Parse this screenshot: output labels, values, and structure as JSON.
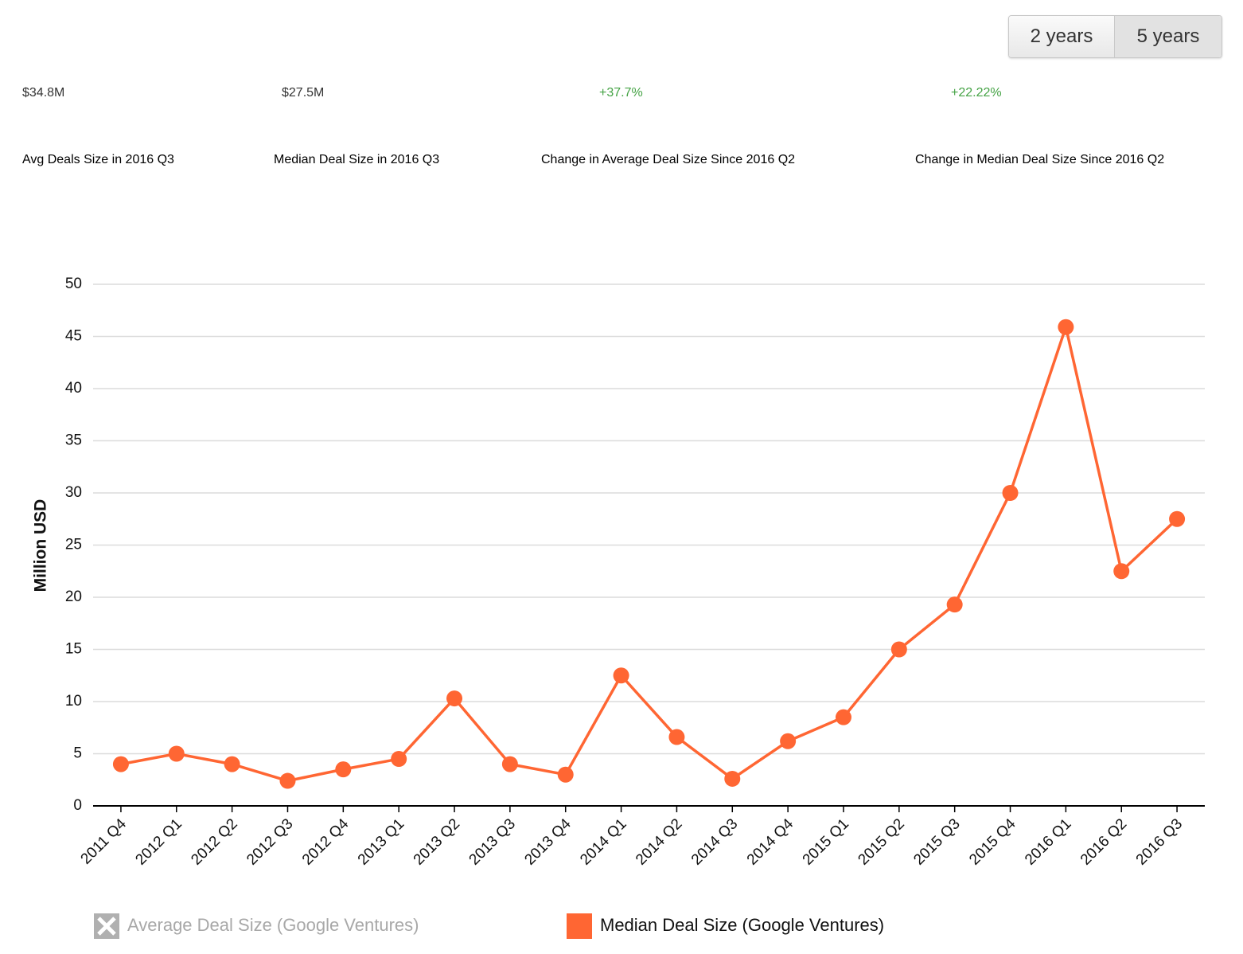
{
  "buttons": [
    "2 years",
    "5 years"
  ],
  "active_button": 1,
  "stats": [
    {
      "value": "$34.8M",
      "label": "Avg Deals Size in 2016 Q3",
      "color": "#333333"
    },
    {
      "value": "$27.5M",
      "label": "Median Deal Size in 2016 Q3",
      "color": "#333333"
    },
    {
      "value": "+37.7%",
      "label": "Change in Average Deal Size Since 2016 Q2",
      "color": "#45a345"
    },
    {
      "value": "+22.22%",
      "label": "Change in Median Deal Size Since 2016 Q2",
      "color": "#45a345"
    }
  ],
  "chart_data": {
    "type": "line",
    "y_label": "Million USD",
    "categories": [
      "2011 Q4",
      "2012 Q1",
      "2012 Q2",
      "2012 Q3",
      "2012 Q4",
      "2013 Q1",
      "2013 Q2",
      "2013 Q3",
      "2013 Q4",
      "2014 Q1",
      "2014 Q2",
      "2014 Q3",
      "2014 Q4",
      "2015 Q1",
      "2015 Q2",
      "2015 Q3",
      "2015 Q4",
      "2016 Q1",
      "2016 Q2",
      "2016 Q3"
    ],
    "series": [
      {
        "name": "Median Deal Size (Google Ventures)",
        "color": "#ff6633",
        "values": [
          4,
          5,
          4,
          2.4,
          3.5,
          4.5,
          10.3,
          4,
          3,
          12.5,
          6.6,
          2.6,
          6.2,
          8.5,
          15,
          19.3,
          30,
          45.9,
          22.5,
          27.5
        ]
      }
    ],
    "hidden_series": [
      {
        "name": "Average Deal Size (Google Ventures)",
        "color": "#b0b0b0"
      }
    ],
    "ylim": [
      0,
      50
    ],
    "yticks": [
      0,
      5,
      10,
      15,
      20,
      25,
      30,
      35,
      40,
      45,
      50
    ],
    "grid": true
  }
}
